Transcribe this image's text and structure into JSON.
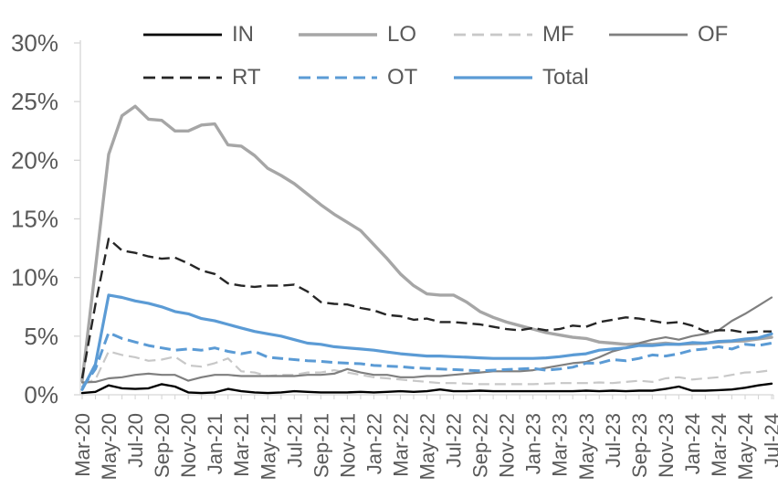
{
  "chart_data": {
    "type": "line",
    "title": "",
    "xlabel": "",
    "ylabel": "",
    "ylim": [
      0,
      30
    ],
    "grid": false,
    "legend_position": "top",
    "axis_text_color": "#595959",
    "axis_line_color": "#d6d6d6",
    "accent_blue": "#5b9bd5",
    "y_ticks": [
      "0%",
      "5%",
      "10%",
      "15%",
      "20%",
      "25%",
      "30%"
    ],
    "y_tick_values": [
      0,
      5,
      10,
      15,
      20,
      25,
      30
    ],
    "x_tick_label_interval": 2,
    "x_labels": [
      "Mar-20",
      "Apr-20",
      "May-20",
      "Jun-20",
      "Jul-20",
      "Aug-20",
      "Sep-20",
      "Oct-20",
      "Nov-20",
      "Dec-20",
      "Jan-21",
      "Feb-21",
      "Mar-21",
      "Apr-21",
      "May-21",
      "Jun-21",
      "Jul-21",
      "Aug-21",
      "Sep-21",
      "Oct-21",
      "Nov-21",
      "Dec-21",
      "Jan-22",
      "Feb-22",
      "Mar-22",
      "Apr-22",
      "May-22",
      "Jun-22",
      "Jul-22",
      "Aug-22",
      "Sep-22",
      "Oct-22",
      "Nov-22",
      "Dec-22",
      "Jan-23",
      "Feb-23",
      "Mar-23",
      "Apr-23",
      "May-23",
      "Jun-23",
      "Jul-23",
      "Aug-23",
      "Sep-23",
      "Oct-23",
      "Nov-23",
      "Dec-23",
      "Jan-24",
      "Feb-24",
      "Mar-24",
      "Apr-24",
      "May-24",
      "Jun-24",
      "Jul-24"
    ],
    "series": [
      {
        "name": "IN",
        "color": "#000000",
        "style": "solid",
        "width": 2.4,
        "values": [
          0.15,
          0.25,
          0.8,
          0.55,
          0.5,
          0.55,
          0.9,
          0.7,
          0.2,
          0.15,
          0.2,
          0.5,
          0.3,
          0.2,
          0.15,
          0.2,
          0.3,
          0.25,
          0.2,
          0.2,
          0.2,
          0.25,
          0.2,
          0.25,
          0.3,
          0.25,
          0.3,
          0.45,
          0.3,
          0.3,
          0.35,
          0.3,
          0.3,
          0.3,
          0.3,
          0.3,
          0.3,
          0.3,
          0.35,
          0.3,
          0.35,
          0.3,
          0.35,
          0.35,
          0.5,
          0.7,
          0.35,
          0.35,
          0.4,
          0.45,
          0.6,
          0.8,
          0.95
        ]
      },
      {
        "name": "LO",
        "color": "#a6a6a6",
        "style": "solid",
        "width": 3.4,
        "values": [
          1.2,
          10.8,
          20.5,
          23.8,
          24.6,
          23.5,
          23.4,
          22.5,
          22.5,
          23.0,
          23.1,
          21.3,
          21.2,
          20.4,
          19.3,
          18.7,
          18.0,
          17.1,
          16.2,
          15.4,
          14.7,
          14.0,
          12.8,
          11.6,
          10.3,
          9.3,
          8.6,
          8.5,
          8.5,
          7.9,
          7.1,
          6.6,
          6.2,
          5.9,
          5.6,
          5.3,
          5.1,
          4.9,
          4.8,
          4.5,
          4.4,
          4.3,
          4.35,
          4.3,
          4.4,
          4.3,
          4.35,
          4.4,
          4.5,
          4.55,
          4.6,
          4.75,
          4.9
        ]
      },
      {
        "name": "MF",
        "color": "#c8c8c8",
        "style": "dashed",
        "width": 2.2,
        "values": [
          0.9,
          1.3,
          3.7,
          3.4,
          3.2,
          2.9,
          3.0,
          3.25,
          2.5,
          2.4,
          2.7,
          3.1,
          2.0,
          1.9,
          1.6,
          1.7,
          1.7,
          1.9,
          1.9,
          2.1,
          1.9,
          1.7,
          1.5,
          1.4,
          1.3,
          1.2,
          1.1,
          1.0,
          1.0,
          0.95,
          0.9,
          0.9,
          0.9,
          0.9,
          0.9,
          0.95,
          1.0,
          1.0,
          1.0,
          1.05,
          1.0,
          1.1,
          1.2,
          1.1,
          1.4,
          1.5,
          1.3,
          1.4,
          1.5,
          1.7,
          1.9,
          1.95,
          2.1
        ]
      },
      {
        "name": "OF",
        "color": "#7f7f7f",
        "style": "solid",
        "width": 2.2,
        "values": [
          1.05,
          1.1,
          1.4,
          1.5,
          1.7,
          1.8,
          1.7,
          1.7,
          1.2,
          1.5,
          1.7,
          1.7,
          1.6,
          1.6,
          1.6,
          1.6,
          1.6,
          1.7,
          1.7,
          1.8,
          2.2,
          1.9,
          1.7,
          1.7,
          1.5,
          1.5,
          1.6,
          1.6,
          1.7,
          1.8,
          1.9,
          2.0,
          2.0,
          2.0,
          2.1,
          2.3,
          2.5,
          2.7,
          2.8,
          3.2,
          3.7,
          4.0,
          4.4,
          4.7,
          4.9,
          4.7,
          5.0,
          5.2,
          5.5,
          6.3,
          6.9,
          7.6,
          8.3
        ]
      },
      {
        "name": "RT",
        "color": "#262626",
        "style": "dashed",
        "width": 2.4,
        "values": [
          1.4,
          7.7,
          13.3,
          12.3,
          12.1,
          11.8,
          11.6,
          11.7,
          11.2,
          10.6,
          10.3,
          9.5,
          9.3,
          9.2,
          9.3,
          9.3,
          9.4,
          8.8,
          7.9,
          7.75,
          7.7,
          7.4,
          7.2,
          6.8,
          6.7,
          6.4,
          6.5,
          6.2,
          6.2,
          6.1,
          6.0,
          5.8,
          5.6,
          5.5,
          5.7,
          5.5,
          5.6,
          5.9,
          5.8,
          6.2,
          6.4,
          6.6,
          6.5,
          6.3,
          6.1,
          6.2,
          5.9,
          5.4,
          5.5,
          5.5,
          5.3,
          5.4,
          5.4
        ]
      },
      {
        "name": "OT",
        "color": "#5b9bd5",
        "style": "dashed",
        "width": 3.0,
        "values": [
          0.6,
          2.2,
          5.3,
          4.8,
          4.5,
          4.2,
          4.0,
          3.8,
          3.9,
          3.8,
          4.0,
          3.7,
          3.5,
          3.7,
          3.2,
          3.1,
          3.0,
          2.9,
          2.85,
          2.75,
          2.7,
          2.65,
          2.5,
          2.45,
          2.4,
          2.3,
          2.25,
          2.2,
          2.15,
          2.1,
          2.05,
          2.1,
          2.15,
          2.2,
          2.25,
          2.1,
          2.2,
          2.35,
          2.7,
          2.7,
          3.0,
          2.9,
          3.1,
          3.4,
          3.3,
          3.5,
          3.8,
          3.9,
          4.1,
          3.9,
          4.3,
          4.2,
          4.4
        ]
      },
      {
        "name": "Total",
        "color": "#5b9bd5",
        "style": "solid",
        "width": 3.2,
        "values": [
          0.45,
          2.6,
          8.5,
          8.3,
          8.0,
          7.8,
          7.5,
          7.1,
          6.9,
          6.5,
          6.3,
          6.0,
          5.7,
          5.4,
          5.2,
          5.0,
          4.7,
          4.4,
          4.3,
          4.1,
          4.0,
          3.9,
          3.8,
          3.65,
          3.5,
          3.4,
          3.3,
          3.3,
          3.25,
          3.2,
          3.15,
          3.1,
          3.1,
          3.1,
          3.1,
          3.15,
          3.25,
          3.4,
          3.5,
          3.8,
          3.9,
          4.0,
          4.2,
          4.2,
          4.3,
          4.3,
          4.45,
          4.4,
          4.55,
          4.6,
          4.75,
          4.85,
          5.2
        ]
      }
    ]
  }
}
